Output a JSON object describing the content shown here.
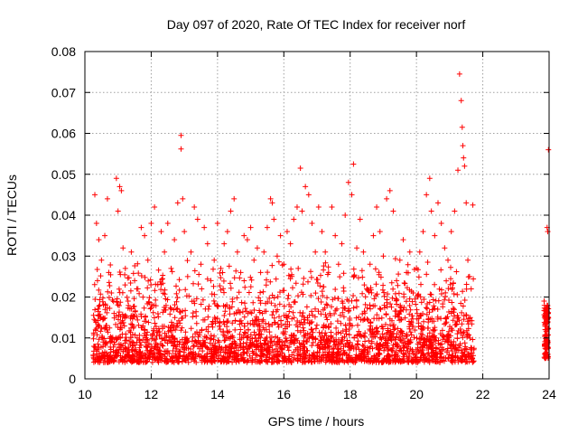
{
  "chart_data": {
    "type": "scatter",
    "title": "Day 097 of 2020, Rate Of TEC Index for receiver norf",
    "xlabel": "GPS time / hours",
    "ylabel": "ROTI / TECUs",
    "xlim": [
      10,
      24
    ],
    "ylim": [
      0,
      0.08
    ],
    "xticks": [
      10,
      12,
      14,
      16,
      18,
      20,
      22,
      24
    ],
    "xtick_labels": [
      "10",
      "12",
      "14",
      "16",
      "18",
      "20",
      "22",
      "24"
    ],
    "yticks": [
      0,
      0.01,
      0.02,
      0.03,
      0.04,
      0.05,
      0.06,
      0.07,
      0.08
    ],
    "ytick_labels": [
      "0",
      "0.01",
      "0.02",
      "0.03",
      "0.04",
      "0.05",
      "0.06",
      "0.07",
      "0.08"
    ],
    "grid": true,
    "marker": "+",
    "color": "#ff0000",
    "series": [
      {
        "points": [
          [
            10.3,
            0.045
          ],
          [
            10.35,
            0.038
          ],
          [
            10.42,
            0.034
          ],
          [
            10.5,
            0.029
          ],
          [
            10.38,
            0.024
          ],
          [
            10.45,
            0.018
          ],
          [
            10.32,
            0.012
          ],
          [
            10.55,
            0.009
          ],
          [
            10.6,
            0.035
          ],
          [
            10.68,
            0.044
          ],
          [
            10.72,
            0.026
          ],
          [
            10.8,
            0.021
          ],
          [
            10.88,
            0.016
          ],
          [
            10.95,
            0.049
          ],
          [
            11.0,
            0.041
          ],
          [
            11.05,
            0.047
          ],
          [
            11.1,
            0.046
          ],
          [
            11.15,
            0.032
          ],
          [
            11.22,
            0.027
          ],
          [
            11.3,
            0.019
          ],
          [
            11.4,
            0.031
          ],
          [
            11.5,
            0.024
          ],
          [
            11.6,
            0.022
          ],
          [
            11.7,
            0.037
          ],
          [
            11.8,
            0.035
          ],
          [
            11.9,
            0.029
          ],
          [
            12.0,
            0.038
          ],
          [
            12.1,
            0.042
          ],
          [
            12.2,
            0.023
          ],
          [
            12.3,
            0.036
          ],
          [
            12.4,
            0.031
          ],
          [
            12.5,
            0.038
          ],
          [
            12.6,
            0.027
          ],
          [
            12.7,
            0.034
          ],
          [
            12.8,
            0.043
          ],
          [
            12.9,
            0.0595
          ],
          [
            12.9,
            0.0562
          ],
          [
            12.95,
            0.044
          ],
          [
            13.0,
            0.036
          ],
          [
            13.1,
            0.025
          ],
          [
            13.2,
            0.031
          ],
          [
            13.3,
            0.042
          ],
          [
            13.4,
            0.039
          ],
          [
            13.5,
            0.028
          ],
          [
            13.6,
            0.037
          ],
          [
            13.7,
            0.033
          ],
          [
            13.8,
            0.024
          ],
          [
            13.9,
            0.029
          ],
          [
            14.0,
            0.038
          ],
          [
            14.1,
            0.027
          ],
          [
            14.2,
            0.033
          ],
          [
            14.3,
            0.036
          ],
          [
            14.4,
            0.041
          ],
          [
            14.5,
            0.044
          ],
          [
            14.6,
            0.031
          ],
          [
            14.7,
            0.026
          ],
          [
            14.8,
            0.035
          ],
          [
            14.9,
            0.034
          ],
          [
            15.0,
            0.037
          ],
          [
            15.1,
            0.029
          ],
          [
            15.2,
            0.032
          ],
          [
            15.3,
            0.026
          ],
          [
            15.4,
            0.031
          ],
          [
            15.5,
            0.037
          ],
          [
            15.6,
            0.044
          ],
          [
            15.65,
            0.043
          ],
          [
            15.7,
            0.039
          ],
          [
            15.8,
            0.03
          ],
          [
            15.9,
            0.035
          ],
          [
            16.0,
            0.028
          ],
          [
            16.1,
            0.036
          ],
          [
            16.2,
            0.033
          ],
          [
            16.3,
            0.039
          ],
          [
            16.4,
            0.042
          ],
          [
            16.5,
            0.0515
          ],
          [
            16.55,
            0.041
          ],
          [
            16.65,
            0.047
          ],
          [
            16.75,
            0.045
          ],
          [
            16.85,
            0.038
          ],
          [
            16.95,
            0.031
          ],
          [
            17.05,
            0.042
          ],
          [
            17.15,
            0.036
          ],
          [
            17.25,
            0.031
          ],
          [
            17.35,
            0.026
          ],
          [
            17.45,
            0.042
          ],
          [
            17.55,
            0.035
          ],
          [
            17.65,
            0.028
          ],
          [
            17.75,
            0.033
          ],
          [
            17.85,
            0.04
          ],
          [
            17.95,
            0.048
          ],
          [
            18.05,
            0.045
          ],
          [
            18.1,
            0.0525
          ],
          [
            18.2,
            0.032
          ],
          [
            18.3,
            0.039
          ],
          [
            18.4,
            0.031
          ],
          [
            18.5,
            0.022
          ],
          [
            18.6,
            0.028
          ],
          [
            18.7,
            0.035
          ],
          [
            18.8,
            0.042
          ],
          [
            18.9,
            0.036
          ],
          [
            19.0,
            0.03
          ],
          [
            19.1,
            0.044
          ],
          [
            19.2,
            0.046
          ],
          [
            19.3,
            0.041
          ],
          [
            19.4,
            0.024
          ],
          [
            19.5,
            0.029
          ],
          [
            19.6,
            0.034
          ],
          [
            19.7,
            0.026
          ],
          [
            19.8,
            0.031
          ],
          [
            19.9,
            0.021
          ],
          [
            20.0,
            0.027
          ],
          [
            20.1,
            0.031
          ],
          [
            20.2,
            0.036
          ],
          [
            20.3,
            0.045
          ],
          [
            20.4,
            0.049
          ],
          [
            20.45,
            0.041
          ],
          [
            20.55,
            0.035
          ],
          [
            20.65,
            0.043
          ],
          [
            20.75,
            0.038
          ],
          [
            20.85,
            0.032
          ],
          [
            20.95,
            0.029
          ],
          [
            21.05,
            0.036
          ],
          [
            21.15,
            0.041
          ],
          [
            21.25,
            0.051
          ],
          [
            21.3,
            0.0745
          ],
          [
            21.35,
            0.068
          ],
          [
            21.38,
            0.0615
          ],
          [
            21.4,
            0.057
          ],
          [
            21.42,
            0.054
          ],
          [
            21.45,
            0.052
          ],
          [
            21.5,
            0.043
          ],
          [
            21.55,
            0.029
          ],
          [
            21.6,
            0.025
          ],
          [
            21.65,
            0.022
          ],
          [
            21.7,
            0.0425
          ],
          [
            23.85,
            0.019
          ],
          [
            23.88,
            0.015
          ],
          [
            23.9,
            0.012
          ],
          [
            23.92,
            0.008
          ],
          [
            23.94,
            0.037
          ],
          [
            23.96,
            0.036
          ],
          [
            23.98,
            0.056
          ]
        ]
      }
    ]
  }
}
